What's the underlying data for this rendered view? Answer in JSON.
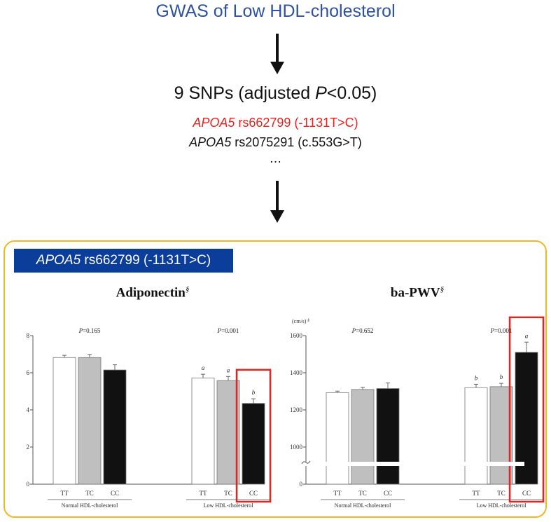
{
  "header": {
    "title": "GWAS of Low HDL-cholesterol",
    "snps_pre": "9 SNPs (adjusted ",
    "snps_p": "P",
    "snps_post": "<0.05)",
    "snp1_gene": "APOA5",
    "snp1_rest": " rs662799 (-1131T>C)",
    "snp2_gene": "APOA5",
    "snp2_rest": " rs2075291 (c.553G>T)",
    "ellipsis": "…"
  },
  "banner": {
    "gene": "APOA5",
    "rest": " rs662799 (-1131T>C)"
  },
  "colors": {
    "title_blue": "#2f52a0",
    "highlight_red": "#e8231f",
    "banner_blue": "#0b3d9a",
    "panel_border": "#f2b824",
    "bar_white": "#ffffff",
    "bar_gray": "#bfbfbf",
    "bar_black": "#111111"
  },
  "chart_data": [
    {
      "type": "bar",
      "title": "Adiponectin",
      "title_mark": "§",
      "ylabel": "",
      "ylim": [
        0,
        8
      ],
      "yticks": [
        "0",
        "2",
        "4",
        "6",
        "8"
      ],
      "groups": [
        {
          "label": "Normal HDL-cholesterol",
          "p_prefix": "P",
          "p_value": "=0.165",
          "bars": [
            {
              "genotype": "TT",
              "value": 6.82,
              "err": 0.12,
              "fill": "white",
              "letter": ""
            },
            {
              "genotype": "TC",
              "value": 6.82,
              "err": 0.17,
              "fill": "gray",
              "letter": ""
            },
            {
              "genotype": "CC",
              "value": 6.15,
              "err": 0.28,
              "fill": "black",
              "letter": ""
            }
          ]
        },
        {
          "label": "Low HDL-cholesterol",
          "p_prefix": "P",
          "p_value": "=0.001",
          "bars": [
            {
              "genotype": "TT",
              "value": 5.72,
              "err": 0.2,
              "fill": "white",
              "letter": "a"
            },
            {
              "genotype": "TC",
              "value": 5.58,
              "err": 0.22,
              "fill": "gray",
              "letter": "a"
            },
            {
              "genotype": "CC",
              "value": 4.35,
              "err": 0.25,
              "fill": "black",
              "letter": "b",
              "highlighted": true
            }
          ]
        }
      ]
    },
    {
      "type": "bar",
      "title": "ba-PWV",
      "title_mark": "§",
      "ylabel": "(cm/s)",
      "ylabel_mark": "§",
      "ylim": [
        1000,
        1600
      ],
      "axis_break": true,
      "yticks": [
        "0",
        "1000",
        "1200",
        "1400",
        "1600"
      ],
      "groups": [
        {
          "label": "Normal HDL-cholesterol",
          "p_prefix": "P",
          "p_value": "=0.652",
          "bars": [
            {
              "genotype": "TT",
              "value": 1293,
              "err": 8,
              "fill": "white",
              "letter": ""
            },
            {
              "genotype": "TC",
              "value": 1310,
              "err": 12,
              "fill": "gray",
              "letter": ""
            },
            {
              "genotype": "CC",
              "value": 1315,
              "err": 30,
              "fill": "black",
              "letter": ""
            }
          ]
        },
        {
          "label": "Low HDL-cholesterol",
          "p_prefix": "P",
          "p_value": "=0.001",
          "bars": [
            {
              "genotype": "TT",
              "value": 1320,
              "err": 18,
              "fill": "white",
              "letter": "b"
            },
            {
              "genotype": "TC",
              "value": 1325,
              "err": 18,
              "fill": "gray",
              "letter": "b"
            },
            {
              "genotype": "CC",
              "value": 1510,
              "err": 55,
              "fill": "black",
              "letter": "a",
              "highlighted": true
            }
          ]
        }
      ]
    }
  ]
}
